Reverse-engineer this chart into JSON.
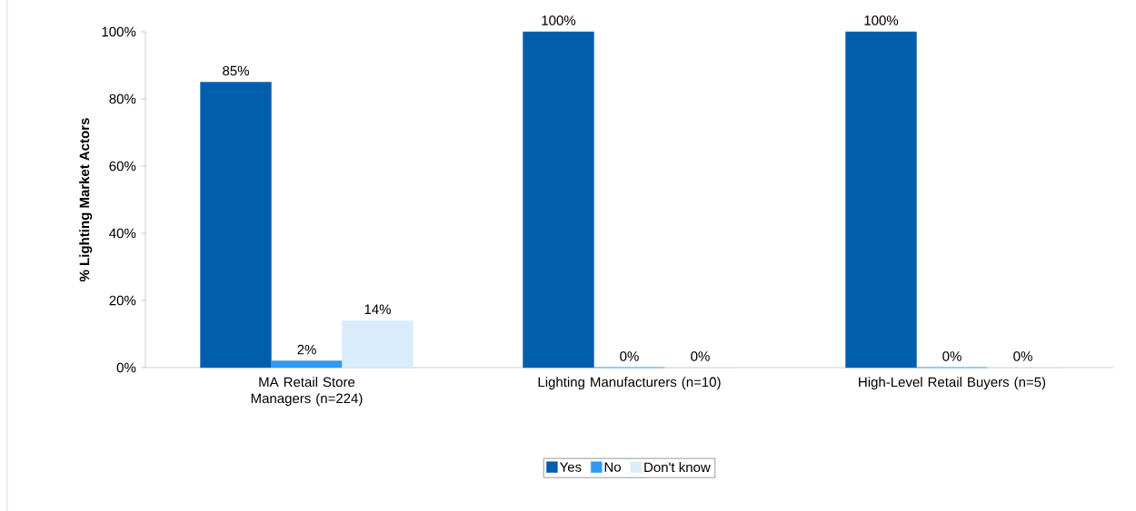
{
  "chart_data": {
    "type": "bar",
    "ylabel": "% Lighting Market Actors",
    "categories": [
      "MA Retail Store Managers (n=224)",
      "Lighting Manufacturers (n=10)",
      "High-Level Retail Buyers (n=5)"
    ],
    "series": [
      {
        "name": "Yes",
        "color": "#005eac",
        "values": [
          85,
          100,
          100
        ],
        "value_labels": [
          "85%",
          "100%",
          "100%"
        ]
      },
      {
        "name": "No",
        "color": "#3399f0",
        "values": [
          2,
          0,
          0
        ],
        "value_labels": [
          "2%",
          "0%",
          "0%"
        ]
      },
      {
        "name": "Don't know",
        "color": "#d9ecfb",
        "values": [
          14,
          0,
          0
        ],
        "value_labels": [
          "14%",
          "0%",
          "0%"
        ]
      }
    ],
    "ylim": [
      0,
      100
    ],
    "yticks": [
      {
        "value": 0,
        "label": "0%"
      },
      {
        "value": 20,
        "label": "20%"
      },
      {
        "value": 40,
        "label": "40%"
      },
      {
        "value": 60,
        "label": "60%"
      },
      {
        "value": 80,
        "label": "80%"
      },
      {
        "value": 100,
        "label": "100%"
      }
    ],
    "legend": "bottom",
    "grid": false
  }
}
